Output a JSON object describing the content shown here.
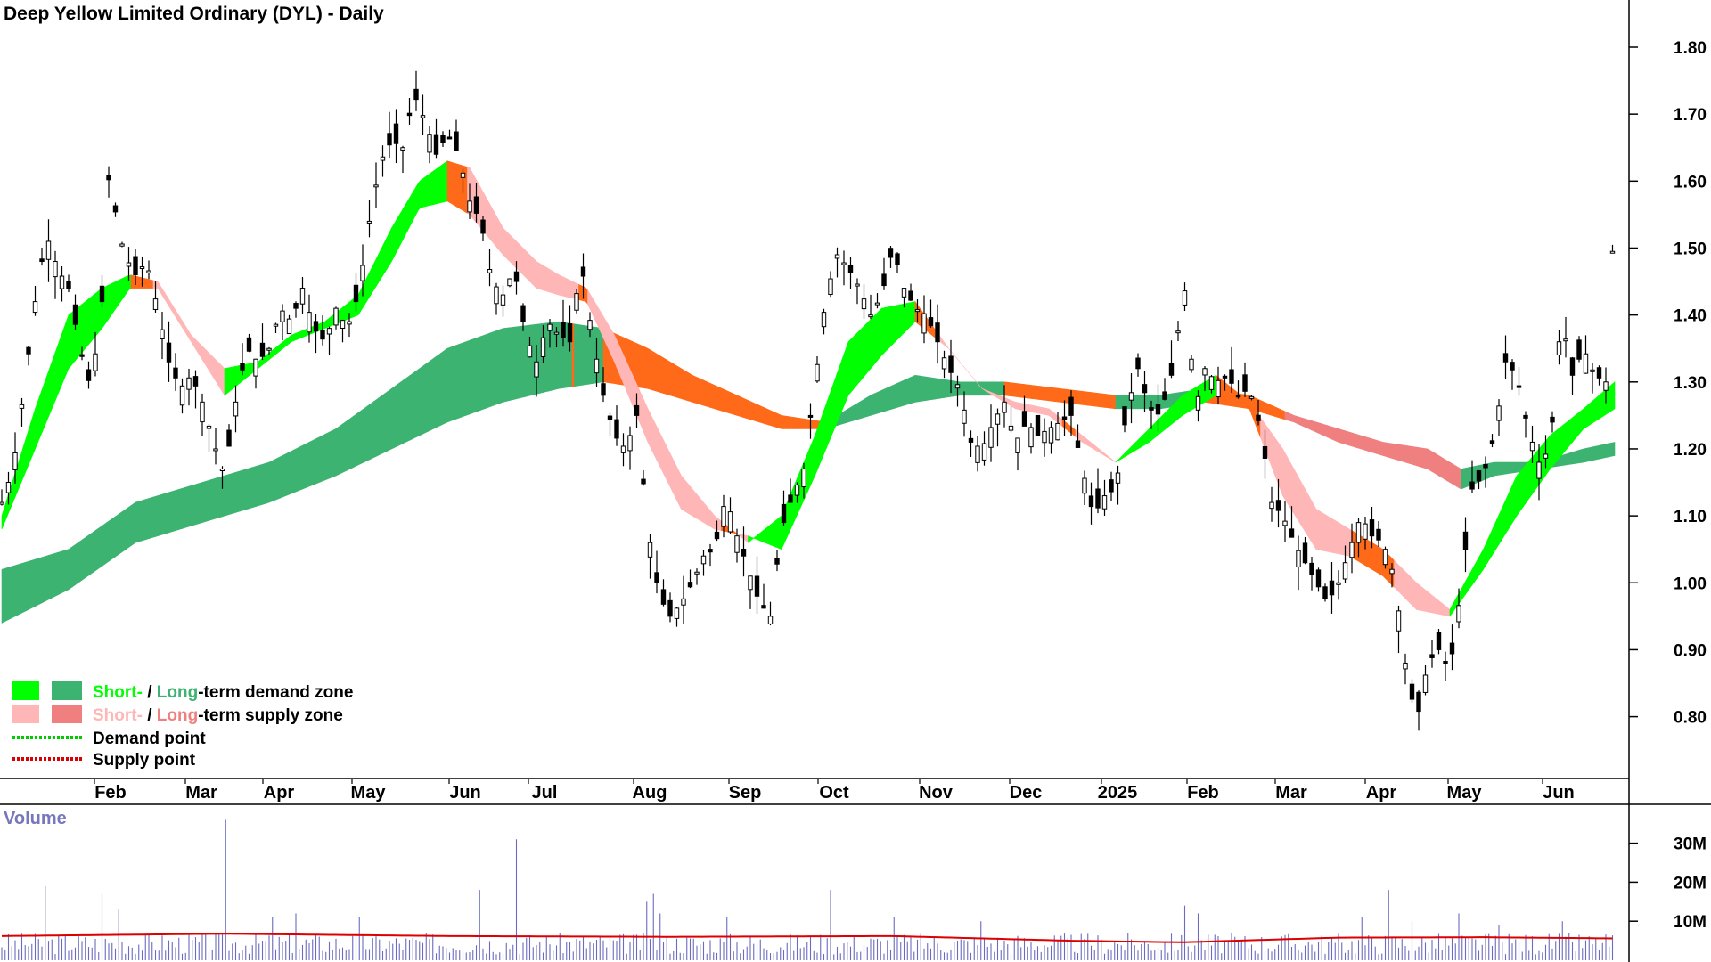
{
  "chart_data": {
    "type": "candlestick",
    "title": "Deep Yellow Limited Ordinary (DYL) - Daily",
    "y_ticks": [
      "1.80",
      "1.70",
      "1.60",
      "1.50",
      "1.40",
      "1.30",
      "1.20",
      "1.10",
      "1.00",
      "0.90",
      "0.80"
    ],
    "y_tick_values": [
      1.8,
      1.7,
      1.6,
      1.5,
      1.4,
      1.3,
      1.2,
      1.1,
      1.0,
      0.9,
      0.8
    ],
    "ylim": [
      0.705,
      1.865
    ],
    "x_labels": [
      "Feb",
      "Mar",
      "Apr",
      "May",
      "Jun",
      "Jul",
      "Aug",
      "Sep",
      "Oct",
      "Nov",
      "Dec",
      "2025",
      "Feb",
      "Mar",
      "Apr",
      "May",
      "Jun"
    ],
    "price_path": [
      [
        0,
        1.12
      ],
      [
        10,
        1.17
      ],
      [
        20,
        1.29
      ],
      [
        30,
        1.42
      ],
      [
        40,
        1.52
      ],
      [
        50,
        1.47
      ],
      [
        60,
        1.44
      ],
      [
        70,
        1.35
      ],
      [
        80,
        1.29
      ],
      [
        90,
        1.42
      ],
      [
        95,
        1.61
      ],
      [
        100,
        1.57
      ],
      [
        110,
        1.49
      ],
      [
        120,
        1.46
      ],
      [
        130,
        1.48
      ],
      [
        140,
        1.41
      ],
      [
        150,
        1.33
      ],
      [
        160,
        1.29
      ],
      [
        170,
        1.31
      ],
      [
        180,
        1.27
      ],
      [
        190,
        1.21
      ],
      [
        200,
        1.16
      ],
      [
        210,
        1.27
      ],
      [
        220,
        1.35
      ],
      [
        230,
        1.33
      ],
      [
        240,
        1.35
      ],
      [
        250,
        1.41
      ],
      [
        260,
        1.39
      ],
      [
        270,
        1.44
      ],
      [
        280,
        1.38
      ],
      [
        290,
        1.36
      ],
      [
        300,
        1.41
      ],
      [
        310,
        1.38
      ],
      [
        320,
        1.43
      ],
      [
        330,
        1.54
      ],
      [
        340,
        1.63
      ],
      [
        350,
        1.66
      ],
      [
        360,
        1.65
      ],
      [
        370,
        1.73
      ],
      [
        380,
        1.69
      ],
      [
        390,
        1.64
      ],
      [
        400,
        1.67
      ],
      [
        410,
        1.64
      ],
      [
        420,
        1.57
      ],
      [
        430,
        1.54
      ],
      [
        440,
        1.45
      ],
      [
        450,
        1.43
      ],
      [
        460,
        1.47
      ],
      [
        470,
        1.37
      ],
      [
        480,
        1.33
      ],
      [
        490,
        1.39
      ],
      [
        500,
        1.37
      ],
      [
        510,
        1.36
      ],
      [
        520,
        1.48
      ],
      [
        530,
        1.37
      ],
      [
        540,
        1.28
      ],
      [
        550,
        1.22
      ],
      [
        560,
        1.2
      ],
      [
        570,
        1.25
      ],
      [
        580,
        1.08
      ],
      [
        590,
        0.98
      ],
      [
        600,
        0.95
      ],
      [
        610,
        0.97
      ],
      [
        620,
        1.0
      ],
      [
        630,
        1.04
      ],
      [
        640,
        1.05
      ],
      [
        650,
        1.13
      ],
      [
        660,
        1.07
      ],
      [
        670,
        1.02
      ],
      [
        680,
        0.97
      ],
      [
        690,
        0.95
      ],
      [
        700,
        1.08
      ],
      [
        710,
        1.13
      ],
      [
        720,
        1.17
      ],
      [
        730,
        1.3
      ],
      [
        740,
        1.43
      ],
      [
        750,
        1.49
      ],
      [
        760,
        1.47
      ],
      [
        770,
        1.44
      ],
      [
        780,
        1.4
      ],
      [
        790,
        1.43
      ],
      [
        800,
        1.5
      ],
      [
        810,
        1.44
      ],
      [
        820,
        1.41
      ],
      [
        830,
        1.4
      ],
      [
        840,
        1.36
      ],
      [
        850,
        1.32
      ],
      [
        860,
        1.29
      ],
      [
        870,
        1.21
      ],
      [
        880,
        1.2
      ],
      [
        890,
        1.24
      ],
      [
        900,
        1.27
      ],
      [
        910,
        1.21
      ],
      [
        920,
        1.24
      ],
      [
        930,
        1.22
      ],
      [
        940,
        1.23
      ],
      [
        950,
        1.24
      ],
      [
        960,
        1.25
      ],
      [
        970,
        1.17
      ],
      [
        980,
        1.1
      ],
      [
        990,
        1.13
      ],
      [
        1000,
        1.14
      ],
      [
        1010,
        1.26
      ],
      [
        1020,
        1.32
      ],
      [
        1030,
        1.26
      ],
      [
        1040,
        1.25
      ],
      [
        1050,
        1.31
      ],
      [
        1060,
        1.42
      ],
      [
        1065,
        1.46
      ],
      [
        1070,
        1.25
      ],
      [
        1080,
        1.32
      ],
      [
        1090,
        1.3
      ],
      [
        1100,
        1.31
      ],
      [
        1110,
        1.28
      ],
      [
        1120,
        1.29
      ],
      [
        1130,
        1.23
      ],
      [
        1140,
        1.12
      ],
      [
        1150,
        1.1
      ],
      [
        1160,
        1.06
      ],
      [
        1170,
        1.03
      ],
      [
        1180,
        1.0
      ],
      [
        1190,
        0.97
      ],
      [
        1200,
        1.0
      ],
      [
        1210,
        1.05
      ],
      [
        1220,
        1.1
      ],
      [
        1230,
        1.07
      ],
      [
        1240,
        1.06
      ],
      [
        1250,
        1.01
      ],
      [
        1260,
        0.88
      ],
      [
        1270,
        0.79
      ],
      [
        1280,
        0.88
      ],
      [
        1290,
        0.9
      ],
      [
        1300,
        0.87
      ],
      [
        1310,
        0.99
      ],
      [
        1320,
        1.14
      ],
      [
        1330,
        1.16
      ],
      [
        1340,
        1.22
      ],
      [
        1350,
        1.33
      ],
      [
        1360,
        1.31
      ],
      [
        1370,
        1.23
      ],
      [
        1380,
        1.18
      ],
      [
        1390,
        1.2
      ],
      [
        1400,
        1.4
      ],
      [
        1410,
        1.31
      ],
      [
        1420,
        1.35
      ],
      [
        1430,
        1.31
      ],
      [
        1440,
        1.3
      ],
      [
        1448,
        1.56
      ]
    ],
    "short_term_bands": [
      [
        0,
        1.1,
        1.08
      ],
      [
        30,
        1.26,
        1.2
      ],
      [
        60,
        1.4,
        1.32
      ],
      [
        90,
        1.44,
        1.38
      ],
      [
        115,
        1.46,
        1.44
      ],
      [
        140,
        1.45,
        1.44
      ],
      [
        170,
        1.37,
        1.36
      ],
      [
        200,
        1.32,
        1.28
      ],
      [
        230,
        1.33,
        1.32
      ],
      [
        260,
        1.37,
        1.36
      ],
      [
        290,
        1.39,
        1.38
      ],
      [
        320,
        1.43,
        1.4
      ],
      [
        350,
        1.53,
        1.48
      ],
      [
        375,
        1.6,
        1.56
      ],
      [
        400,
        1.63,
        1.57
      ],
      [
        420,
        1.62,
        1.55
      ],
      [
        450,
        1.53,
        1.49
      ],
      [
        480,
        1.48,
        1.44
      ],
      [
        500,
        1.46,
        1.43
      ],
      [
        525,
        1.44,
        1.42
      ],
      [
        550,
        1.37,
        1.33
      ],
      [
        580,
        1.26,
        1.21
      ],
      [
        610,
        1.16,
        1.11
      ],
      [
        640,
        1.1,
        1.08
      ],
      [
        670,
        1.06,
        1.07
      ],
      [
        700,
        1.1,
        1.05
      ],
      [
        730,
        1.22,
        1.16
      ],
      [
        760,
        1.36,
        1.28
      ],
      [
        790,
        1.41,
        1.34
      ],
      [
        820,
        1.42,
        1.39
      ],
      [
        850,
        1.35,
        1.35
      ],
      [
        880,
        1.29,
        1.29
      ],
      [
        910,
        1.27,
        1.26
      ],
      [
        940,
        1.26,
        1.25
      ],
      [
        970,
        1.22,
        1.21
      ],
      [
        1000,
        1.18,
        1.18
      ],
      [
        1030,
        1.23,
        1.21
      ],
      [
        1060,
        1.28,
        1.25
      ],
      [
        1090,
        1.31,
        1.28
      ],
      [
        1120,
        1.27,
        1.26
      ],
      [
        1150,
        1.2,
        1.13
      ],
      [
        1180,
        1.11,
        1.05
      ],
      [
        1210,
        1.08,
        1.04
      ],
      [
        1240,
        1.05,
        1.01
      ],
      [
        1270,
        1.0,
        0.96
      ],
      [
        1300,
        0.96,
        0.95
      ],
      [
        1330,
        1.05,
        1.02
      ],
      [
        1360,
        1.16,
        1.1
      ],
      [
        1390,
        1.22,
        1.17
      ],
      [
        1420,
        1.26,
        1.23
      ],
      [
        1448,
        1.3,
        1.26
      ]
    ],
    "long_term_bands": [
      [
        0,
        1.02,
        0.94
      ],
      [
        60,
        1.05,
        0.99
      ],
      [
        120,
        1.12,
        1.06
      ],
      [
        180,
        1.15,
        1.09
      ],
      [
        240,
        1.18,
        1.12
      ],
      [
        300,
        1.23,
        1.16
      ],
      [
        350,
        1.29,
        1.2
      ],
      [
        400,
        1.35,
        1.24
      ],
      [
        450,
        1.38,
        1.27
      ],
      [
        500,
        1.39,
        1.29
      ],
      [
        540,
        1.38,
        1.3
      ],
      [
        580,
        1.35,
        1.29
      ],
      [
        620,
        1.31,
        1.27
      ],
      [
        660,
        1.28,
        1.25
      ],
      [
        700,
        1.25,
        1.23
      ],
      [
        740,
        1.24,
        1.23
      ],
      [
        780,
        1.28,
        1.25
      ],
      [
        820,
        1.31,
        1.27
      ],
      [
        860,
        1.3,
        1.28
      ],
      [
        900,
        1.3,
        1.28
      ],
      [
        950,
        1.29,
        1.27
      ],
      [
        1000,
        1.28,
        1.26
      ],
      [
        1040,
        1.28,
        1.26
      ],
      [
        1080,
        1.29,
        1.27
      ],
      [
        1120,
        1.28,
        1.26
      ],
      [
        1160,
        1.25,
        1.24
      ],
      [
        1200,
        1.23,
        1.21
      ],
      [
        1240,
        1.21,
        1.19
      ],
      [
        1280,
        1.2,
        1.17
      ],
      [
        1310,
        1.17,
        1.14
      ],
      [
        1340,
        1.18,
        1.16
      ],
      [
        1380,
        1.18,
        1.17
      ],
      [
        1420,
        1.2,
        1.18
      ],
      [
        1448,
        1.21,
        1.19
      ]
    ],
    "volume_ticks": [
      "30M",
      "20M",
      "10M"
    ],
    "volume_tick_values": [
      30,
      20,
      10
    ],
    "volume_ylim": [
      0,
      37
    ],
    "volume_spikes": [
      [
        38,
        19
      ],
      [
        90,
        17
      ],
      [
        105,
        13
      ],
      [
        200,
        36
      ],
      [
        243,
        11
      ],
      [
        265,
        12
      ],
      [
        320,
        11
      ],
      [
        428,
        18
      ],
      [
        463,
        31
      ],
      [
        579,
        15
      ],
      [
        585,
        17
      ],
      [
        590,
        12
      ],
      [
        650,
        11
      ],
      [
        745,
        18
      ],
      [
        800,
        11
      ],
      [
        880,
        10
      ],
      [
        1062,
        14
      ],
      [
        1075,
        12
      ],
      [
        1220,
        11
      ],
      [
        1246,
        18
      ],
      [
        1265,
        10
      ],
      [
        1307,
        12
      ],
      [
        1345,
        9
      ],
      [
        1400,
        10
      ],
      [
        1449,
        16
      ]
    ],
    "volume_avg": [
      [
        0,
        6.2
      ],
      [
        200,
        6.8
      ],
      [
        400,
        6.2
      ],
      [
        600,
        6.0
      ],
      [
        800,
        6.2
      ],
      [
        960,
        5.0
      ],
      [
        1060,
        4.6
      ],
      [
        1200,
        5.8
      ],
      [
        1330,
        5.9
      ],
      [
        1448,
        5.6
      ]
    ],
    "volume_title": "Volume",
    "legend": [
      {
        "swatches": [
          "#00ff00",
          "#3cb371"
        ],
        "parts": [
          {
            "text": "Short-",
            "color": "#00ff00"
          },
          {
            "text": " / ",
            "color": "#000000"
          },
          {
            "text": "Long",
            "color": "#3cb371"
          },
          {
            "text": "-term demand zone",
            "color": "#000000"
          }
        ]
      },
      {
        "swatches": [
          "#ffb6b6",
          "#f08080"
        ],
        "parts": [
          {
            "text": "Short-",
            "color": "#ffb6b6"
          },
          {
            "text": " / ",
            "color": "#000000"
          },
          {
            "text": "Long",
            "color": "#f08080"
          },
          {
            "text": "-term supply zone",
            "color": "#000000"
          }
        ]
      },
      {
        "line": "#00cc00",
        "parts": [
          {
            "text": "Demand point",
            "color": "#000000"
          }
        ]
      },
      {
        "line": "#dd0000",
        "parts": [
          {
            "text": "Supply point",
            "color": "#000000"
          }
        ]
      }
    ],
    "colors": {
      "demand_short": "#00ff00",
      "demand_long": "#3cb371",
      "supply_short": "#ffb6b6",
      "supply_long": "#ff6a1a",
      "supply_long_legend": "#f08080",
      "volume_bar": "#6b6bbf",
      "volume_avg": "#dd0000"
    }
  }
}
